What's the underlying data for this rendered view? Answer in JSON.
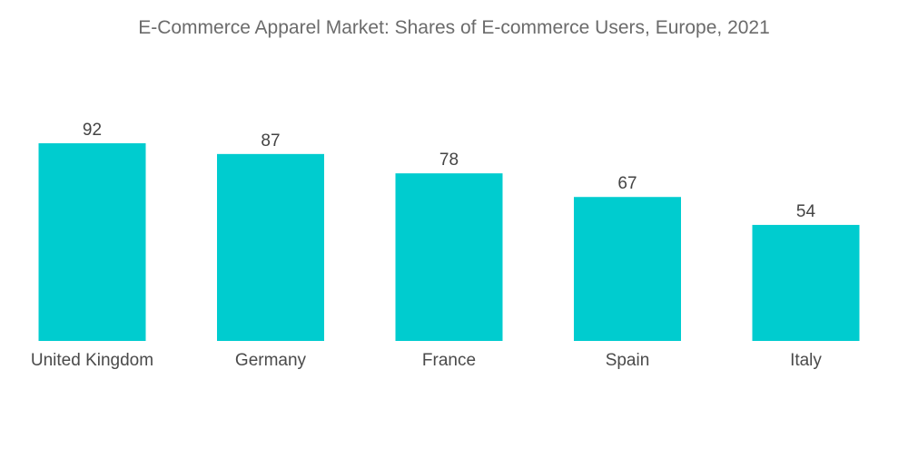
{
  "chart_data": {
    "type": "bar",
    "title": "E-Commerce Apparel Market: Shares of E-commerce Users, Europe, 2021",
    "categories": [
      "United Kingdom",
      "Germany",
      "France",
      "Spain",
      "Italy"
    ],
    "values": [
      92,
      87,
      78,
      67,
      54
    ],
    "xlabel": "",
    "ylabel": "",
    "ylim": [
      0,
      92
    ],
    "grid": false,
    "legend": "none",
    "bar_color": "#00cccf"
  }
}
